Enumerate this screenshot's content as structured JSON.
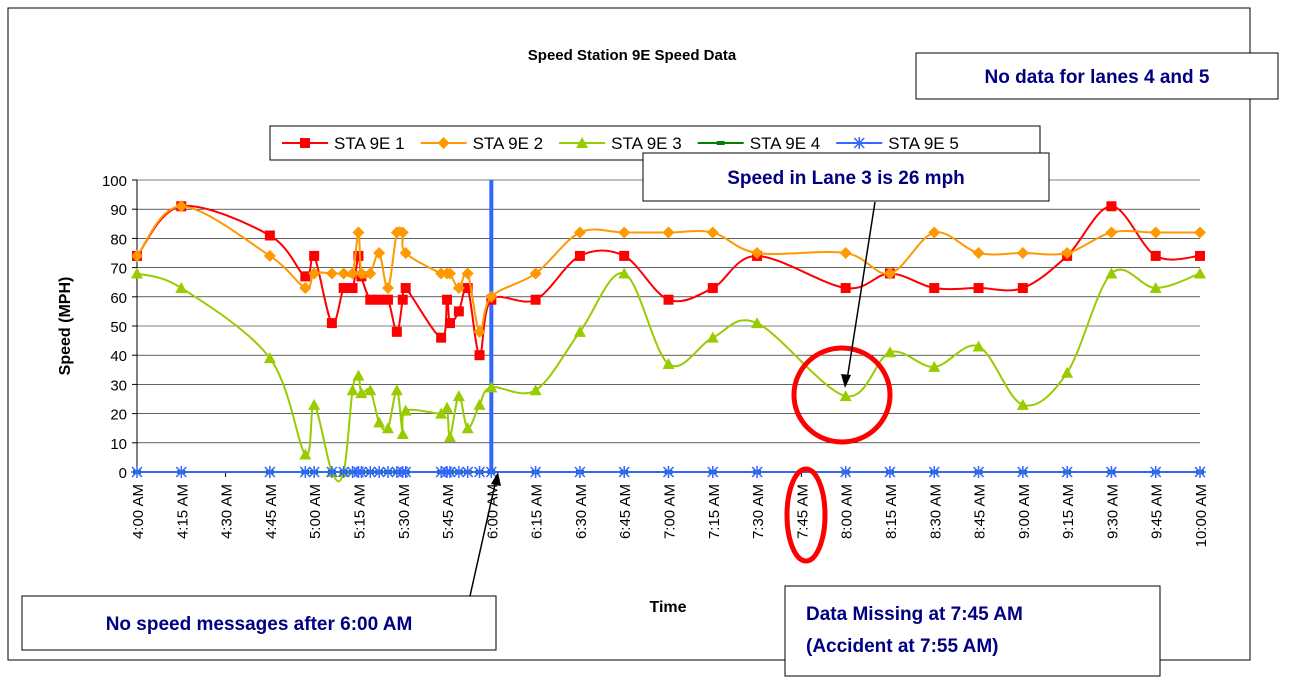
{
  "chart_data": {
    "type": "line",
    "title": "Speed Station 9E Speed Data",
    "xlabel": "Time",
    "ylabel": "Speed (MPH)",
    "x": [
      "4:00 AM",
      "4:15 AM",
      "4:45 AM",
      "4:57 AM",
      "5:00 AM",
      "5:06 AM",
      "5:10 AM",
      "5:13 AM",
      "5:15 AM",
      "5:16 AM",
      "5:19 AM",
      "5:22 AM",
      "5:25 AM",
      "5:28 AM",
      "5:30 AM",
      "5:31 AM",
      "5:43 AM",
      "5:45 AM",
      "5:46 AM",
      "5:49 AM",
      "5:52 AM",
      "5:56 AM",
      "6:00 AM",
      "6:15 AM",
      "6:30 AM",
      "6:45 AM",
      "7:00 AM",
      "7:15 AM",
      "7:30 AM",
      "8:00 AM",
      "8:15 AM",
      "8:30 AM",
      "8:45 AM",
      "9:00 AM",
      "9:15 AM",
      "9:30 AM",
      "9:45 AM",
      "10:00 AM"
    ],
    "series": [
      {
        "name": "STA 9E 1",
        "color": "#ff0000",
        "marker": "square",
        "values": [
          74,
          91,
          81,
          67,
          74,
          51,
          63,
          63,
          74,
          67,
          59,
          59,
          59,
          48,
          59,
          63,
          46,
          59,
          51,
          55,
          63,
          40,
          59,
          59,
          74,
          74,
          59,
          63,
          74,
          63,
          68,
          63,
          63,
          63,
          74,
          91,
          74,
          74
        ]
      },
      {
        "name": "STA 9E 2",
        "color": "#ff9900",
        "marker": "diamond",
        "values": [
          74,
          91,
          74,
          63,
          68,
          68,
          68,
          68,
          82,
          68,
          68,
          75,
          63,
          82,
          82,
          75,
          68,
          68,
          68,
          63,
          68,
          48,
          60,
          68,
          82,
          82,
          82,
          82,
          75,
          75,
          68,
          82,
          75,
          75,
          75,
          82,
          82,
          82
        ]
      },
      {
        "name": "STA 9E 3",
        "color": "#99cc00",
        "marker": "triangle",
        "values": [
          68,
          63,
          39,
          6,
          23,
          0,
          0,
          28,
          33,
          27,
          28,
          17,
          15,
          28,
          13,
          21,
          20,
          22,
          12,
          26,
          15,
          23,
          29,
          28,
          48,
          68,
          37,
          46,
          51,
          26,
          41,
          36,
          43,
          23,
          34,
          68,
          63,
          68
        ]
      },
      {
        "name": "STA 9E 4",
        "color": "#008000",
        "marker": "dash",
        "values": [
          0,
          0,
          0,
          0,
          0,
          0,
          0,
          0,
          0,
          0,
          0,
          0,
          0,
          0,
          0,
          0,
          0,
          0,
          0,
          0,
          0,
          0,
          0,
          0,
          0,
          0,
          0,
          0,
          0,
          0,
          0,
          0,
          0,
          0,
          0,
          0,
          0,
          0
        ]
      },
      {
        "name": "STA 9E 5",
        "color": "#3366ff",
        "marker": "star",
        "values": [
          0,
          0,
          0,
          0,
          0,
          0,
          0,
          0,
          0,
          0,
          0,
          0,
          0,
          0,
          0,
          0,
          0,
          0,
          0,
          0,
          0,
          0,
          0,
          0,
          0,
          0,
          0,
          0,
          0,
          0,
          0,
          0,
          0,
          0,
          0,
          0,
          0,
          0
        ]
      }
    ],
    "xlim": [
      "4:00 AM",
      "10:00 AM"
    ],
    "xticks": [
      "4:00 AM",
      "4:15 AM",
      "4:30 AM",
      "4:45 AM",
      "5:00 AM",
      "5:15 AM",
      "5:30 AM",
      "5:45 AM",
      "6:00 AM",
      "6:15 AM",
      "6:30 AM",
      "6:45 AM",
      "7:00 AM",
      "7:15 AM",
      "7:30 AM",
      "7:45 AM",
      "8:00 AM",
      "8:15 AM",
      "8:30 AM",
      "8:45 AM",
      "9:00 AM",
      "9:15 AM",
      "9:30 AM",
      "9:45 AM",
      "10:00 AM"
    ],
    "ylim": [
      0,
      100
    ],
    "yticks": [
      0,
      10,
      20,
      30,
      40,
      50,
      60,
      70,
      80,
      90,
      100
    ],
    "grid": true,
    "legend": "top",
    "vline": "6:00 AM",
    "annotations": [
      "No data for lanes 4 and 5",
      "Speed in Lane 3 is 26 mph",
      "No speed messages after 6:00 AM",
      "Data Missing at 7:45 AM",
      "(Accident at 7:55 AM)"
    ]
  }
}
